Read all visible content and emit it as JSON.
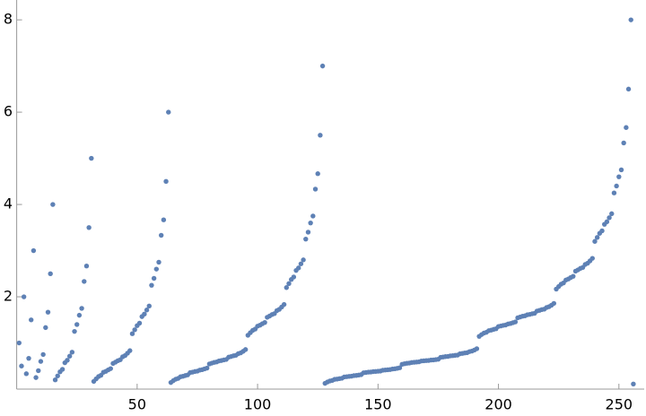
{
  "chart_data": {
    "type": "scatter",
    "xlim": [
      0,
      260.5
    ],
    "ylim": [
      0,
      8.43
    ],
    "xticks": [
      50,
      100,
      150,
      200,
      250
    ],
    "yticks": [
      2,
      4,
      6,
      8
    ],
    "color": "#5e81b5",
    "x": [
      1,
      2,
      3,
      4,
      5,
      6,
      7,
      8,
      9,
      10,
      11,
      12,
      13,
      14,
      15,
      16,
      17,
      18,
      19,
      20,
      21,
      22,
      23,
      24,
      25,
      26,
      27,
      28,
      29,
      30,
      31,
      32,
      33,
      34,
      35,
      36,
      37,
      38,
      39,
      40,
      41,
      42,
      43,
      44,
      45,
      46,
      47,
      48,
      49,
      50,
      51,
      52,
      53,
      54,
      55,
      56,
      57,
      58,
      59,
      60,
      61,
      62,
      63,
      64,
      65,
      66,
      67,
      68,
      69,
      70,
      71,
      72,
      73,
      74,
      75,
      76,
      77,
      78,
      79,
      80,
      81,
      82,
      83,
      84,
      85,
      86,
      87,
      88,
      89,
      90,
      91,
      92,
      93,
      94,
      95,
      96,
      97,
      98,
      99,
      100,
      101,
      102,
      103,
      104,
      105,
      106,
      107,
      108,
      109,
      110,
      111,
      112,
      113,
      114,
      115,
      116,
      117,
      118,
      119,
      120,
      121,
      122,
      123,
      124,
      125,
      126,
      127,
      128,
      129,
      130,
      131,
      132,
      133,
      134,
      135,
      136,
      137,
      138,
      139,
      140,
      141,
      142,
      143,
      144,
      145,
      146,
      147,
      148,
      149,
      150,
      151,
      152,
      153,
      154,
      155,
      156,
      157,
      158,
      159,
      160,
      161,
      162,
      163,
      164,
      165,
      166,
      167,
      168,
      169,
      170,
      171,
      172,
      173,
      174,
      175,
      176,
      177,
      178,
      179,
      180,
      181,
      182,
      183,
      184,
      185,
      186,
      187,
      188,
      189,
      190,
      191,
      192,
      193,
      194,
      195,
      196,
      197,
      198,
      199,
      200,
      201,
      202,
      203,
      204,
      205,
      206,
      207,
      208,
      209,
      210,
      211,
      212,
      213,
      214,
      215,
      216,
      217,
      218,
      219,
      220,
      221,
      222,
      223,
      224,
      225,
      226,
      227,
      228,
      229,
      230,
      231,
      232,
      233,
      234,
      235,
      236,
      237,
      238,
      239,
      240,
      241,
      242,
      243,
      244,
      245,
      246,
      247,
      248,
      249,
      250,
      251,
      252,
      253,
      254,
      255,
      256
    ],
    "values": [
      1,
      0.5,
      2,
      0.333,
      0.667,
      1.5,
      3,
      0.25,
      0.4,
      0.6,
      0.75,
      1.333,
      1.667,
      2.5,
      4,
      0.2,
      0.286,
      0.375,
      0.429,
      0.571,
      0.625,
      0.714,
      0.8,
      1.25,
      1.4,
      1.6,
      1.75,
      2.333,
      2.667,
      3.5,
      5,
      0.167,
      0.222,
      0.273,
      0.3,
      0.364,
      0.385,
      0.417,
      0.444,
      0.556,
      0.583,
      0.615,
      0.636,
      0.7,
      0.727,
      0.778,
      0.833,
      1.2,
      1.286,
      1.375,
      1.429,
      1.571,
      1.625,
      1.714,
      1.8,
      2.25,
      2.4,
      2.6,
      2.75,
      3.333,
      3.667,
      4.5,
      6,
      0.143,
      0.182,
      0.214,
      0.231,
      0.267,
      0.278,
      0.294,
      0.308,
      0.357,
      0.368,
      0.381,
      0.389,
      0.412,
      0.421,
      0.438,
      0.455,
      0.545,
      0.563,
      0.579,
      0.588,
      0.611,
      0.619,
      0.632,
      0.643,
      0.692,
      0.706,
      0.722,
      0.733,
      0.769,
      0.786,
      0.818,
      0.857,
      1.167,
      1.222,
      1.273,
      1.3,
      1.364,
      1.385,
      1.417,
      1.444,
      1.556,
      1.583,
      1.615,
      1.636,
      1.7,
      1.727,
      1.778,
      1.833,
      2.2,
      2.286,
      2.375,
      2.429,
      2.571,
      2.625,
      2.714,
      2.8,
      3.25,
      3.4,
      3.6,
      3.75,
      4.333,
      4.667,
      5.5,
      7,
      0.125,
      0.154,
      0.176,
      0.188,
      0.211,
      0.217,
      0.227,
      0.235,
      0.263,
      0.269,
      0.276,
      0.28,
      0.292,
      0.296,
      0.304,
      0.313,
      0.353,
      0.36,
      0.367,
      0.37,
      0.379,
      0.382,
      0.387,
      0.391,
      0.409,
      0.414,
      0.419,
      0.423,
      0.435,
      0.44,
      0.45,
      0.462,
      0.538,
      0.55,
      0.56,
      0.565,
      0.577,
      0.581,
      0.586,
      0.591,
      0.609,
      0.613,
      0.618,
      0.621,
      0.63,
      0.633,
      0.64,
      0.647,
      0.688,
      0.696,
      0.704,
      0.708,
      0.72,
      0.724,
      0.731,
      0.737,
      0.765,
      0.773,
      0.783,
      0.789,
      0.813,
      0.824,
      0.846,
      0.875,
      1.143,
      1.182,
      1.214,
      1.231,
      1.267,
      1.278,
      1.294,
      1.308,
      1.357,
      1.368,
      1.381,
      1.389,
      1.412,
      1.421,
      1.438,
      1.455,
      1.545,
      1.563,
      1.579,
      1.588,
      1.611,
      1.619,
      1.632,
      1.643,
      1.692,
      1.706,
      1.722,
      1.733,
      1.769,
      1.786,
      1.818,
      1.857,
      2.167,
      2.222,
      2.273,
      2.3,
      2.364,
      2.385,
      2.417,
      2.444,
      2.556,
      2.583,
      2.615,
      2.636,
      2.7,
      2.727,
      2.778,
      2.833,
      3.2,
      3.286,
      3.375,
      3.429,
      3.571,
      3.625,
      3.714,
      3.8,
      4.25,
      4.4,
      4.6,
      4.75,
      5.333,
      5.667,
      6.5,
      8,
      0.111
    ]
  }
}
